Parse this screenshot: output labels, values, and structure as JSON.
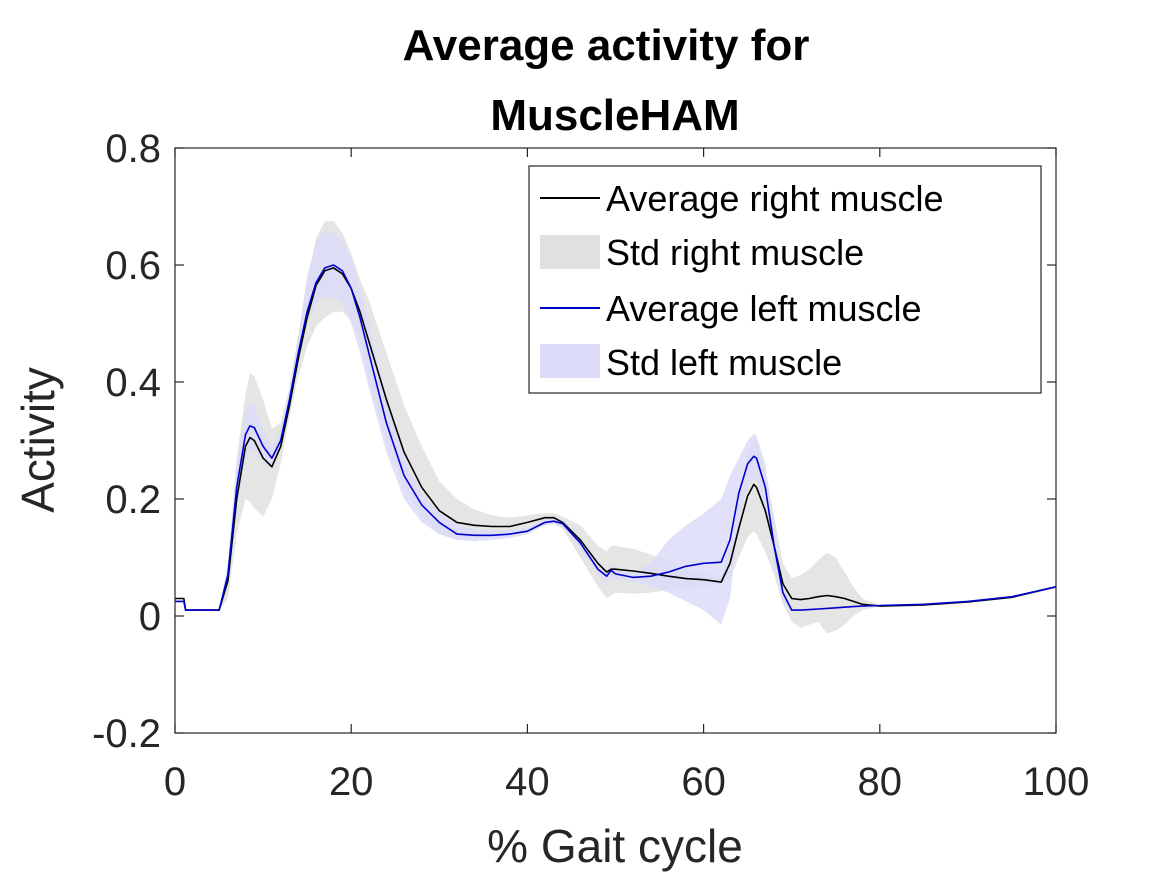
{
  "chart_data": {
    "type": "line",
    "title": [
      "Average activity for",
      "MuscleHAM"
    ],
    "xlabel": "% Gait cycle",
    "ylabel": "Activity",
    "xlim": [
      0,
      100
    ],
    "ylim": [
      -0.2,
      0.8
    ],
    "xticks": [
      0,
      20,
      40,
      60,
      80,
      100
    ],
    "xtick_labels": [
      "0",
      "20",
      "40",
      "60",
      "80",
      "100"
    ],
    "yticks": [
      -0.2,
      0,
      0.2,
      0.4,
      0.6,
      0.8
    ],
    "ytick_labels": [
      "-0.2",
      "0",
      "0.2",
      "0.4",
      "0.6",
      "0.8"
    ],
    "grid": false,
    "legend_position": "top-right",
    "x": [
      0,
      1,
      1.2,
      2,
      4,
      5,
      6,
      7,
      8,
      8.5,
      9,
      10,
      11,
      12,
      13,
      14,
      15,
      16,
      17,
      18,
      19,
      20,
      21,
      22,
      24,
      26,
      28,
      30,
      32,
      34,
      36,
      38,
      40,
      42,
      43,
      44,
      46,
      48,
      49,
      49.5,
      50,
      52,
      54,
      56,
      58,
      60,
      62,
      63,
      64,
      65,
      65.7,
      66,
      67,
      68,
      69,
      70,
      71,
      72,
      73,
      74,
      75,
      76,
      77,
      78,
      80,
      85,
      90,
      95,
      100
    ],
    "series": [
      {
        "name": "Average right muscle",
        "kind": "mean",
        "color": "#000000",
        "values": [
          0.03,
          0.03,
          0.01,
          0.01,
          0.01,
          0.01,
          0.06,
          0.2,
          0.29,
          0.305,
          0.3,
          0.27,
          0.255,
          0.29,
          0.36,
          0.44,
          0.51,
          0.565,
          0.59,
          0.595,
          0.585,
          0.56,
          0.52,
          0.47,
          0.37,
          0.28,
          0.22,
          0.18,
          0.16,
          0.155,
          0.153,
          0.153,
          0.16,
          0.168,
          0.168,
          0.16,
          0.13,
          0.09,
          0.075,
          0.08,
          0.08,
          0.077,
          0.073,
          0.068,
          0.064,
          0.062,
          0.058,
          0.09,
          0.15,
          0.205,
          0.225,
          0.22,
          0.18,
          0.12,
          0.055,
          0.03,
          0.028,
          0.03,
          0.033,
          0.035,
          0.033,
          0.03,
          0.025,
          0.02,
          0.017,
          0.019,
          0.024,
          0.032,
          0.05
        ]
      },
      {
        "name": "Std right muscle",
        "kind": "band",
        "color": "#e0e0e0",
        "lower": [
          0.03,
          0.03,
          0.01,
          0.01,
          0.01,
          0.01,
          0.03,
          0.14,
          0.2,
          0.195,
          0.185,
          0.17,
          0.2,
          0.26,
          0.34,
          0.41,
          0.46,
          0.495,
          0.51,
          0.52,
          0.52,
          0.505,
          0.47,
          0.4,
          0.3,
          0.22,
          0.17,
          0.14,
          0.13,
          0.132,
          0.135,
          0.138,
          0.145,
          0.155,
          0.158,
          0.15,
          0.1,
          0.05,
          0.03,
          0.035,
          0.04,
          0.038,
          0.04,
          0.045,
          0.048,
          0.05,
          0.055,
          0.065,
          0.1,
          0.135,
          0.145,
          0.14,
          0.11,
          0.07,
          0.02,
          -0.01,
          -0.02,
          -0.015,
          -0.01,
          -0.03,
          -0.025,
          -0.015,
          0.0,
          0.01,
          0.016,
          0.019,
          0.024,
          0.032,
          0.05
        ],
        "upper": [
          0.03,
          0.03,
          0.01,
          0.01,
          0.01,
          0.01,
          0.09,
          0.27,
          0.38,
          0.415,
          0.41,
          0.37,
          0.32,
          0.33,
          0.39,
          0.48,
          0.57,
          0.645,
          0.675,
          0.675,
          0.655,
          0.62,
          0.575,
          0.54,
          0.45,
          0.36,
          0.29,
          0.23,
          0.2,
          0.182,
          0.172,
          0.168,
          0.172,
          0.176,
          0.176,
          0.17,
          0.155,
          0.12,
          0.11,
          0.12,
          0.12,
          0.115,
          0.105,
          0.095,
          0.082,
          0.075,
          0.068,
          0.115,
          0.2,
          0.28,
          0.305,
          0.3,
          0.25,
          0.17,
          0.09,
          0.065,
          0.07,
          0.08,
          0.095,
          0.108,
          0.1,
          0.075,
          0.05,
          0.03,
          0.018,
          0.019,
          0.024,
          0.032,
          0.05
        ]
      },
      {
        "name": "Average left muscle",
        "kind": "mean",
        "color": "#0000cc",
        "values": [
          0.025,
          0.025,
          0.01,
          0.01,
          0.01,
          0.01,
          0.07,
          0.22,
          0.31,
          0.325,
          0.322,
          0.29,
          0.27,
          0.3,
          0.37,
          0.45,
          0.52,
          0.57,
          0.595,
          0.6,
          0.59,
          0.56,
          0.51,
          0.45,
          0.33,
          0.24,
          0.19,
          0.16,
          0.14,
          0.138,
          0.138,
          0.14,
          0.145,
          0.16,
          0.162,
          0.158,
          0.125,
          0.08,
          0.068,
          0.078,
          0.072,
          0.066,
          0.068,
          0.075,
          0.085,
          0.09,
          0.092,
          0.13,
          0.21,
          0.26,
          0.273,
          0.27,
          0.22,
          0.12,
          0.04,
          0.01,
          0.01,
          0.011,
          0.012,
          0.013,
          0.014,
          0.015,
          0.016,
          0.017,
          0.018,
          0.02,
          0.025,
          0.033,
          0.05
        ]
      },
      {
        "name": "Std left muscle",
        "kind": "band",
        "color": "#dcdcf8",
        "lower": [
          0.025,
          0.025,
          0.01,
          0.01,
          0.01,
          0.01,
          0.05,
          0.18,
          0.27,
          0.285,
          0.285,
          0.26,
          0.255,
          0.29,
          0.36,
          0.44,
          0.5,
          0.535,
          0.545,
          0.545,
          0.535,
          0.5,
          0.45,
          0.39,
          0.28,
          0.2,
          0.16,
          0.14,
          0.13,
          0.128,
          0.13,
          0.133,
          0.14,
          0.155,
          0.157,
          0.15,
          0.115,
          0.07,
          0.058,
          0.068,
          0.063,
          0.058,
          0.052,
          0.04,
          0.025,
          0.01,
          -0.015,
          0.03,
          0.16,
          0.22,
          0.235,
          0.232,
          0.18,
          0.09,
          0.025,
          0.01,
          0.01,
          0.011,
          0.012,
          0.013,
          0.014,
          0.015,
          0.016,
          0.017,
          0.018,
          0.02,
          0.025,
          0.033,
          0.05
        ],
        "upper": [
          0.025,
          0.025,
          0.01,
          0.01,
          0.01,
          0.01,
          0.09,
          0.26,
          0.35,
          0.365,
          0.36,
          0.32,
          0.29,
          0.32,
          0.39,
          0.48,
          0.58,
          0.64,
          0.66,
          0.655,
          0.64,
          0.61,
          0.56,
          0.5,
          0.37,
          0.27,
          0.21,
          0.175,
          0.155,
          0.148,
          0.146,
          0.147,
          0.15,
          0.165,
          0.167,
          0.165,
          0.135,
          0.09,
          0.078,
          0.088,
          0.082,
          0.074,
          0.09,
          0.13,
          0.155,
          0.175,
          0.2,
          0.24,
          0.27,
          0.3,
          0.312,
          0.308,
          0.26,
          0.15,
          0.055,
          0.01,
          0.01,
          0.011,
          0.012,
          0.013,
          0.014,
          0.015,
          0.016,
          0.017,
          0.018,
          0.02,
          0.025,
          0.033,
          0.05
        ]
      }
    ]
  }
}
